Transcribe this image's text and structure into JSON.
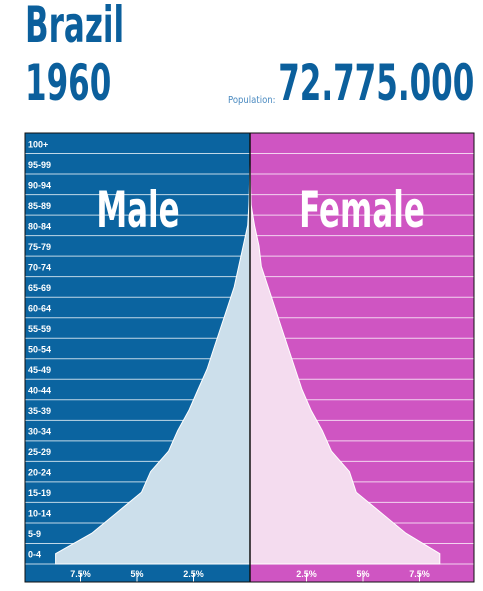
{
  "header": {
    "country": "Brazil",
    "year": "1960",
    "population_label": "Population:",
    "population_value": "72.775.000"
  },
  "colors": {
    "male": "#0b64a0",
    "female": "#cf55c2",
    "male_fill": "#ccdfeb",
    "female_fill": "#f4dcef"
  },
  "chart_data": {
    "type": "bar",
    "orientation": "horizontal-pyramid",
    "side_labels": [
      "Male",
      "Female"
    ],
    "categories": [
      "0-4",
      "5-9",
      "10-14",
      "15-19",
      "20-24",
      "25-29",
      "30-34",
      "35-39",
      "40-44",
      "45-49",
      "50-54",
      "55-59",
      "60-64",
      "65-69",
      "70-74",
      "75-79",
      "80-84",
      "85-89",
      "90-94",
      "95-99",
      "100+"
    ],
    "series": [
      {
        "name": "Male",
        "values": [
          8.6,
          7.0,
          5.9,
          4.8,
          4.4,
          3.6,
          3.2,
          2.7,
          2.3,
          1.9,
          1.6,
          1.3,
          1.0,
          0.7,
          0.5,
          0.3,
          0.1,
          0.05,
          0.02,
          0.0,
          0.0
        ]
      },
      {
        "name": "Female",
        "values": [
          8.4,
          6.9,
          5.8,
          4.7,
          4.4,
          3.6,
          3.2,
          2.7,
          2.3,
          2.0,
          1.7,
          1.4,
          1.1,
          0.8,
          0.5,
          0.4,
          0.2,
          0.05,
          0.02,
          0.0,
          0.0
        ]
      }
    ],
    "x_ticks": [
      "7.5%",
      "5%",
      "2.5%",
      "2.5%",
      "5%",
      "7.5%"
    ],
    "x_tick_values": [
      7.5,
      5,
      2.5,
      2.5,
      5,
      7.5
    ],
    "xlim": [
      0,
      10
    ]
  }
}
